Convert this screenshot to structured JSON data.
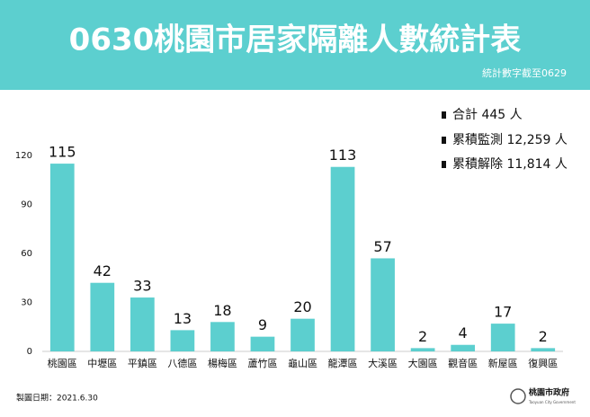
{
  "chart_data": {
    "type": "bar",
    "title": "0630桃園市居家隔離人數統計表",
    "subtitle": "統計數字截至0629",
    "categories": [
      "桃園區",
      "中壢區",
      "平鎮區",
      "八德區",
      "楊梅區",
      "蘆竹區",
      "龜山區",
      "龍潭區",
      "大溪區",
      "大園區",
      "觀音區",
      "新屋區",
      "復興區"
    ],
    "values": [
      115,
      42,
      33,
      13,
      18,
      9,
      20,
      113,
      57,
      2,
      4,
      17,
      2
    ],
    "color": "#5ccfcf",
    "ylim": [
      0,
      120
    ],
    "yticks": [
      0,
      30,
      60,
      90,
      120
    ],
    "grid": false,
    "annotations": [
      "合計 445 人",
      "累積監測 12,259 人",
      "累積解除 11,814 人"
    ],
    "note": "製圖日期：2021.6.30",
    "logo_text": "桃園市政府",
    "logo_subtext": "Taoyuan City Government"
  }
}
